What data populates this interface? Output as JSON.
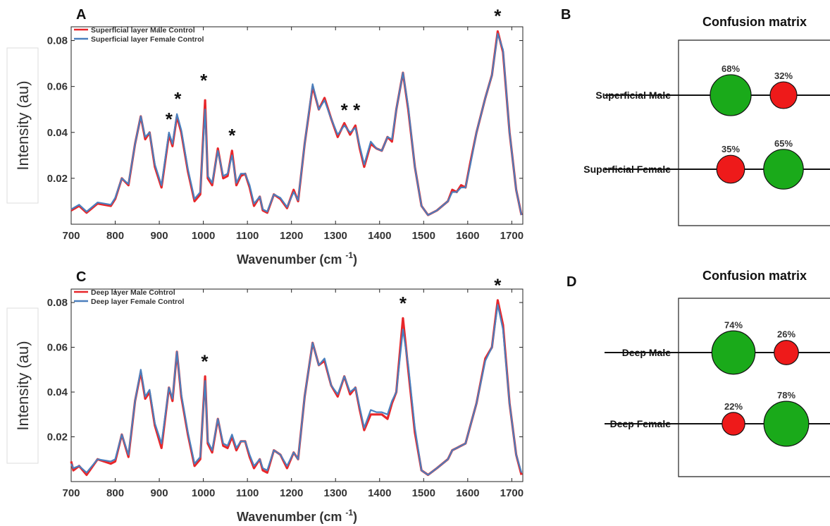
{
  "panels": {
    "a_label": "A",
    "b_label": "B",
    "c_label": "C",
    "d_label": "D"
  },
  "colors": {
    "male": "#e8262a",
    "female": "#4a7fbd",
    "correct": "#1aaa1a",
    "incorrect": "#ee1a1a"
  },
  "chart_data": [
    {
      "panel": "A",
      "type": "line",
      "xlabel": "Wavenumber (cm",
      "xlabel_sup": "-1",
      "xlabel_close": ")",
      "ylabel": "Intensity (au)",
      "xlim": [
        700,
        1725
      ],
      "ylim": [
        0.0,
        0.086
      ],
      "xticks": [
        700,
        800,
        900,
        1000,
        1100,
        1200,
        1300,
        1400,
        1500,
        1600,
        1700
      ],
      "yticks": [
        0.02,
        0.04,
        0.06,
        0.08
      ],
      "ytick_labels": [
        "0.02",
        "0.04",
        "0.06",
        "0.08"
      ],
      "series": [
        {
          "name": "Superficial layer Male Control",
          "color": "#e8262a",
          "x": [
            700,
            718,
            735,
            760,
            790,
            800,
            815,
            830,
            845,
            858,
            868,
            878,
            890,
            905,
            922,
            930,
            940,
            950,
            965,
            980,
            993,
            1004,
            1010,
            1020,
            1033,
            1045,
            1055,
            1065,
            1075,
            1085,
            1095,
            1105,
            1115,
            1128,
            1135,
            1145,
            1160,
            1175,
            1190,
            1205,
            1215,
            1230,
            1248,
            1262,
            1275,
            1290,
            1305,
            1320,
            1333,
            1345,
            1355,
            1365,
            1380,
            1393,
            1405,
            1418,
            1428,
            1438,
            1453,
            1465,
            1480,
            1495,
            1510,
            1530,
            1555,
            1565,
            1575,
            1585,
            1595,
            1606,
            1620,
            1640,
            1655,
            1668,
            1680,
            1695,
            1710,
            1722
          ],
          "values": [
            0.006,
            0.008,
            0.005,
            0.009,
            0.008,
            0.011,
            0.02,
            0.017,
            0.035,
            0.047,
            0.037,
            0.04,
            0.025,
            0.016,
            0.039,
            0.034,
            0.047,
            0.04,
            0.023,
            0.01,
            0.013,
            0.054,
            0.02,
            0.017,
            0.033,
            0.02,
            0.021,
            0.032,
            0.017,
            0.021,
            0.022,
            0.016,
            0.008,
            0.012,
            0.006,
            0.005,
            0.013,
            0.011,
            0.007,
            0.015,
            0.01,
            0.035,
            0.06,
            0.05,
            0.055,
            0.046,
            0.038,
            0.044,
            0.039,
            0.043,
            0.033,
            0.025,
            0.035,
            0.033,
            0.032,
            0.038,
            0.036,
            0.05,
            0.066,
            0.05,
            0.025,
            0.008,
            0.004,
            0.006,
            0.01,
            0.015,
            0.014,
            0.017,
            0.016,
            0.027,
            0.04,
            0.055,
            0.065,
            0.084,
            0.075,
            0.04,
            0.015,
            0.004
          ]
        },
        {
          "name": "Superficial layer Female Control",
          "color": "#4a7fbd",
          "x": [
            700,
            718,
            735,
            760,
            790,
            800,
            815,
            830,
            845,
            858,
            868,
            878,
            890,
            905,
            922,
            930,
            940,
            950,
            965,
            980,
            993,
            1004,
            1010,
            1020,
            1033,
            1045,
            1055,
            1065,
            1075,
            1085,
            1095,
            1105,
            1115,
            1128,
            1135,
            1145,
            1160,
            1175,
            1190,
            1205,
            1215,
            1230,
            1248,
            1262,
            1275,
            1290,
            1305,
            1320,
            1333,
            1345,
            1355,
            1365,
            1380,
            1393,
            1405,
            1418,
            1428,
            1438,
            1453,
            1465,
            1480,
            1495,
            1510,
            1530,
            1555,
            1565,
            1575,
            1585,
            1595,
            1606,
            1620,
            1640,
            1655,
            1668,
            1680,
            1695,
            1710,
            1722
          ],
          "values": [
            0.0065,
            0.0085,
            0.0055,
            0.0095,
            0.0085,
            0.0115,
            0.02,
            0.0175,
            0.035,
            0.047,
            0.038,
            0.04,
            0.026,
            0.017,
            0.04,
            0.035,
            0.048,
            0.041,
            0.024,
            0.011,
            0.014,
            0.05,
            0.021,
            0.018,
            0.032,
            0.021,
            0.022,
            0.03,
            0.018,
            0.022,
            0.022,
            0.017,
            0.009,
            0.012,
            0.0065,
            0.0055,
            0.013,
            0.0115,
            0.0075,
            0.014,
            0.0105,
            0.035,
            0.061,
            0.05,
            0.054,
            0.046,
            0.039,
            0.043,
            0.04,
            0.042,
            0.034,
            0.026,
            0.036,
            0.033,
            0.032,
            0.038,
            0.037,
            0.05,
            0.066,
            0.051,
            0.025,
            0.008,
            0.004,
            0.006,
            0.01,
            0.014,
            0.014,
            0.016,
            0.016,
            0.026,
            0.04,
            0.055,
            0.065,
            0.083,
            0.076,
            0.04,
            0.015,
            0.004
          ]
        }
      ],
      "annotations": [
        {
          "text": "*",
          "x": 922,
          "y": 0.046
        },
        {
          "text": "*",
          "x": 942,
          "y": 0.055
        },
        {
          "text": "*",
          "x": 1001,
          "y": 0.063
        },
        {
          "text": "*",
          "x": 1065,
          "y": 0.039
        },
        {
          "text": "*",
          "x": 1320,
          "y": 0.05
        },
        {
          "text": "*",
          "x": 1348,
          "y": 0.05
        },
        {
          "text": "*",
          "x": 1668,
          "y": 0.091
        }
      ]
    },
    {
      "panel": "C",
      "type": "line",
      "xlabel": "Wavenumber (cm",
      "xlabel_sup": "-1",
      "xlabel_close": ")",
      "ylabel": "Intensity (au)",
      "xlim": [
        700,
        1725
      ],
      "ylim": [
        0.0,
        0.086
      ],
      "xticks": [
        700,
        800,
        900,
        1000,
        1100,
        1200,
        1300,
        1400,
        1500,
        1600,
        1700
      ],
      "yticks": [
        0.02,
        0.04,
        0.06,
        0.08
      ],
      "ytick_labels": [
        "0.02",
        "0.04",
        "0.06",
        "0.08"
      ],
      "series": [
        {
          "name": "Deep layer Male Control",
          "color": "#e8262a",
          "x": [
            700,
            705,
            718,
            735,
            760,
            790,
            800,
            815,
            830,
            845,
            858,
            868,
            878,
            890,
            905,
            922,
            930,
            940,
            950,
            965,
            980,
            993,
            1004,
            1010,
            1020,
            1033,
            1045,
            1055,
            1065,
            1075,
            1085,
            1095,
            1105,
            1115,
            1128,
            1135,
            1145,
            1160,
            1175,
            1190,
            1205,
            1215,
            1230,
            1248,
            1262,
            1275,
            1290,
            1305,
            1320,
            1333,
            1345,
            1355,
            1365,
            1380,
            1393,
            1405,
            1418,
            1428,
            1438,
            1453,
            1465,
            1480,
            1495,
            1510,
            1530,
            1555,
            1565,
            1575,
            1585,
            1595,
            1606,
            1620,
            1640,
            1655,
            1668,
            1680,
            1695,
            1710,
            1722
          ],
          "values": [
            0.009,
            0.005,
            0.007,
            0.003,
            0.01,
            0.008,
            0.009,
            0.021,
            0.011,
            0.036,
            0.049,
            0.037,
            0.04,
            0.025,
            0.015,
            0.042,
            0.036,
            0.058,
            0.038,
            0.021,
            0.007,
            0.01,
            0.047,
            0.017,
            0.013,
            0.028,
            0.016,
            0.015,
            0.02,
            0.014,
            0.018,
            0.018,
            0.011,
            0.006,
            0.01,
            0.005,
            0.004,
            0.014,
            0.012,
            0.006,
            0.013,
            0.01,
            0.038,
            0.062,
            0.052,
            0.054,
            0.043,
            0.038,
            0.047,
            0.039,
            0.042,
            0.032,
            0.023,
            0.03,
            0.03,
            0.03,
            0.028,
            0.035,
            0.04,
            0.073,
            0.05,
            0.022,
            0.005,
            0.003,
            0.006,
            0.01,
            0.014,
            0.015,
            0.016,
            0.017,
            0.025,
            0.035,
            0.055,
            0.06,
            0.081,
            0.07,
            0.035,
            0.012,
            0.003
          ]
        },
        {
          "name": "Deep layer Female Control",
          "color": "#4a7fbd",
          "x": [
            700,
            705,
            718,
            735,
            760,
            790,
            800,
            815,
            830,
            845,
            858,
            868,
            878,
            890,
            905,
            922,
            930,
            940,
            950,
            965,
            980,
            993,
            1004,
            1010,
            1020,
            1033,
            1045,
            1055,
            1065,
            1075,
            1085,
            1095,
            1105,
            1115,
            1128,
            1135,
            1145,
            1160,
            1175,
            1190,
            1205,
            1215,
            1230,
            1248,
            1262,
            1275,
            1290,
            1305,
            1320,
            1333,
            1345,
            1355,
            1365,
            1380,
            1393,
            1405,
            1418,
            1428,
            1438,
            1453,
            1465,
            1480,
            1495,
            1510,
            1530,
            1555,
            1565,
            1575,
            1585,
            1595,
            1606,
            1620,
            1640,
            1655,
            1668,
            1680,
            1695,
            1710,
            1722
          ],
          "values": [
            0.008,
            0.006,
            0.007,
            0.004,
            0.01,
            0.009,
            0.01,
            0.021,
            0.012,
            0.036,
            0.05,
            0.038,
            0.041,
            0.026,
            0.017,
            0.042,
            0.037,
            0.058,
            0.039,
            0.022,
            0.008,
            0.011,
            0.045,
            0.018,
            0.014,
            0.028,
            0.017,
            0.016,
            0.021,
            0.015,
            0.018,
            0.018,
            0.012,
            0.007,
            0.01,
            0.006,
            0.005,
            0.014,
            0.012,
            0.007,
            0.013,
            0.01,
            0.038,
            0.062,
            0.052,
            0.055,
            0.043,
            0.039,
            0.047,
            0.04,
            0.042,
            0.033,
            0.024,
            0.032,
            0.031,
            0.031,
            0.03,
            0.036,
            0.04,
            0.068,
            0.052,
            0.024,
            0.005,
            0.003,
            0.006,
            0.01,
            0.014,
            0.015,
            0.016,
            0.017,
            0.025,
            0.035,
            0.054,
            0.06,
            0.079,
            0.068,
            0.035,
            0.012,
            0.004
          ]
        }
      ],
      "annotations": [
        {
          "text": "*",
          "x": 1003,
          "y": 0.054
        },
        {
          "text": "*",
          "x": 1453,
          "y": 0.08
        },
        {
          "text": "*",
          "x": 1668,
          "y": 0.088
        }
      ]
    },
    {
      "panel": "B",
      "type": "table",
      "title": "Confusion matrix",
      "rows": [
        {
          "label": "Superficial Male",
          "cells": [
            {
              "pct": 68,
              "label": "68%",
              "kind": "correct"
            },
            {
              "pct": 32,
              "label": "32%",
              "kind": "incorrect"
            }
          ]
        },
        {
          "label": "Superficial Female",
          "cells": [
            {
              "pct": 35,
              "label": "35%",
              "kind": "incorrect"
            },
            {
              "pct": 65,
              "label": "65%",
              "kind": "correct"
            }
          ]
        }
      ]
    },
    {
      "panel": "D",
      "type": "table",
      "title": "Confusion matrix",
      "rows": [
        {
          "label": "Deep Male",
          "cells": [
            {
              "pct": 74,
              "label": "74%",
              "kind": "correct"
            },
            {
              "pct": 26,
              "label": "26%",
              "kind": "incorrect"
            }
          ]
        },
        {
          "label": "Deep Female",
          "cells": [
            {
              "pct": 22,
              "label": "22%",
              "kind": "incorrect"
            },
            {
              "pct": 78,
              "label": "78%",
              "kind": "correct"
            }
          ]
        }
      ]
    }
  ]
}
